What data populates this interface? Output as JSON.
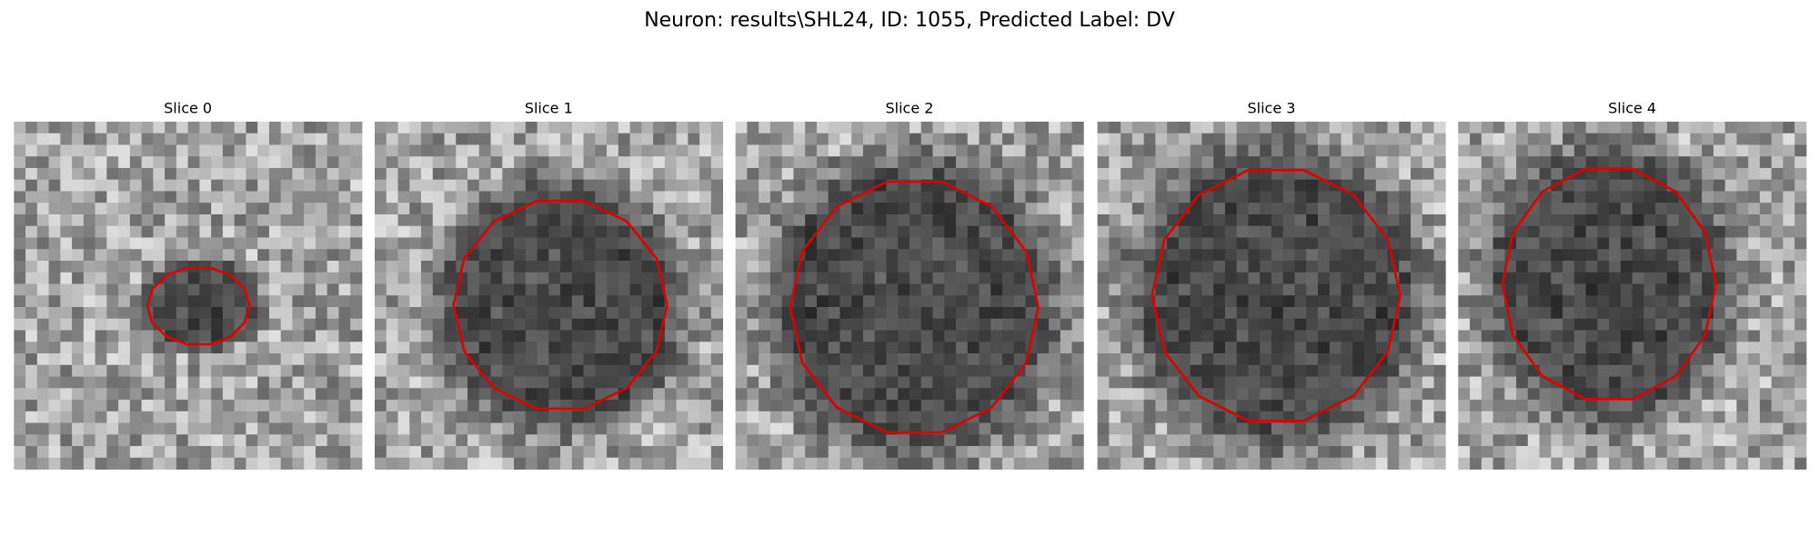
{
  "title": "Neuron: results\\SHL24, ID: 1055, Predicted Label: DV",
  "panels": [
    {
      "label": "Slice 0"
    },
    {
      "label": "Slice 1"
    },
    {
      "label": "Slice 2"
    },
    {
      "label": "Slice 3"
    },
    {
      "label": "Slice 4"
    }
  ]
}
